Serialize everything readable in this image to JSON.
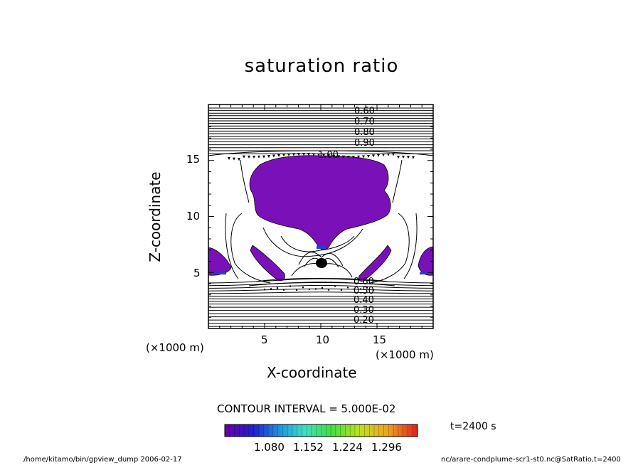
{
  "chart_data": {
    "type": "contour",
    "title": "saturation ratio",
    "xlabel": "X-coordinate",
    "ylabel": "Z-coordinate",
    "x_unit": "(×1000 m)",
    "xticks": [
      "5",
      "10",
      "15"
    ],
    "yticks": [
      "5",
      "10",
      "15"
    ],
    "xlim": [
      0,
      20
    ],
    "ylim": [
      0,
      20
    ],
    "contour_interval_label": "CONTOUR INTERVAL = 5.000E-02",
    "contour_labels_upper": [
      "0.60",
      "0.70",
      "0.80",
      "0.90",
      "1.00"
    ],
    "contour_labels_lower": [
      "0.20",
      "0.30",
      "0.40",
      "0.50",
      "0.60"
    ],
    "colorbar_ticks": [
      "1.080",
      "1.152",
      "1.224",
      "1.296"
    ],
    "colorbar_range": [
      1.044,
      1.332
    ],
    "time_label": "t=2400 s",
    "fill_color": "#7a10b8"
  },
  "footer": {
    "left": "/home/kitamo/bin/gpview_dump  2006-02-17",
    "right": "nc/arare-condplume-scr1-st0.nc@SatRatio,t=2400"
  }
}
